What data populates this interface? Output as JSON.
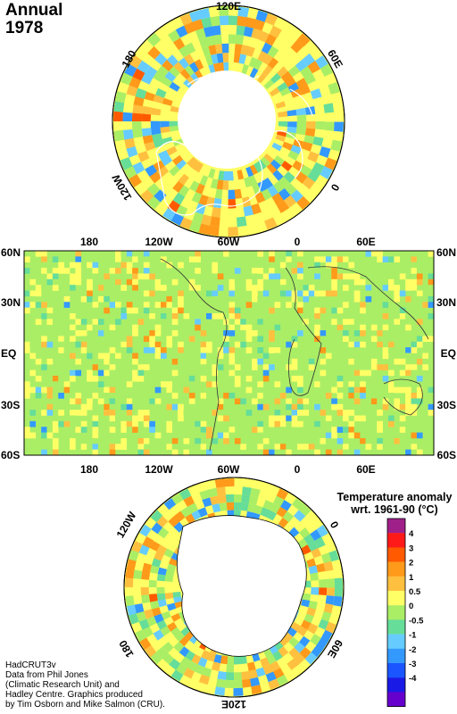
{
  "title": {
    "line1": "Annual",
    "line2": "1978"
  },
  "north_polar": {
    "labels": {
      "top": "120E",
      "upper_left": "180",
      "upper_right": "60E",
      "lower_left": "120W",
      "lower_right": "0"
    }
  },
  "equatorial": {
    "lon_labels": [
      "180",
      "120W",
      "60W",
      "0",
      "60E"
    ],
    "lat_labels": [
      "60N",
      "30N",
      "EQ",
      "30S",
      "60S"
    ]
  },
  "south_polar": {
    "labels": {
      "top": "0",
      "upper_left": "120W",
      "lower_left": "180",
      "lower_right": "60E",
      "bottom": "120E"
    }
  },
  "legend": {
    "title_line1": "Temperature anomaly",
    "title_line2": "wrt. 1961-90  (°C)",
    "ticks": [
      "4",
      "3",
      "2",
      "1",
      "0.5",
      "0",
      "-0.5",
      "-1",
      "-2",
      "-3",
      "-4"
    ],
    "colors": [
      "#a0208a",
      "#ff1a1a",
      "#ff5a00",
      "#ff9a1a",
      "#ffc040",
      "#ffff66",
      "#aaee66",
      "#66dd99",
      "#66ccff",
      "#3399ff",
      "#1a55ff",
      "#1a1ae6",
      "#6600cc"
    ]
  },
  "credit": {
    "line1": "HadCRUT3v",
    "line2": "Data from Phil Jones",
    "line3": "(Climatic Research Unit) and",
    "line4": "Hadley Centre.  Graphics produced",
    "line5": "by Tim Osborn and Mike Salmon (CRU)."
  }
}
